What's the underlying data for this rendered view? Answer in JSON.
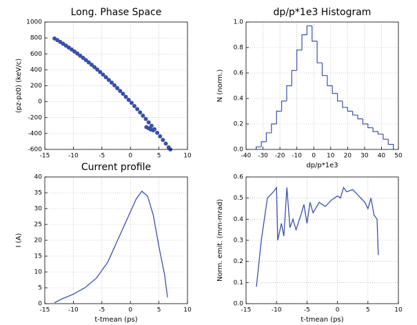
{
  "chart_data": [
    {
      "type": "scatter",
      "title": "Long. Phase Space",
      "ylabel": "(pz-pz0) (keV/c)",
      "color": "#3a4fa8",
      "grid": true,
      "xlim": [
        -15,
        10
      ],
      "xticks": [
        -15,
        -10,
        -5,
        0,
        5,
        10
      ],
      "ylim": [
        -600,
        1000
      ],
      "yticks": [
        -600,
        -400,
        -200,
        0,
        200,
        400,
        600,
        800,
        1000
      ],
      "x": [
        -13.3,
        -12.8,
        -12.3,
        -11.8,
        -11.3,
        -10.8,
        -10.3,
        -9.8,
        -9.3,
        -8.8,
        -8.3,
        -7.8,
        -7.3,
        -6.8,
        -6.3,
        -5.8,
        -5.3,
        -4.8,
        -4.3,
        -3.8,
        -3.3,
        -2.8,
        -2.3,
        -1.8,
        -1.3,
        -0.8,
        -0.3,
        0.2,
        0.7,
        1.2,
        1.7,
        2.2,
        2.7,
        3.2,
        3.7,
        4.2,
        4.7,
        5.2,
        5.7,
        6.2,
        6.7,
        7.0,
        2.8,
        3.2,
        3.6,
        4.0
      ],
      "values": [
        794,
        773,
        750,
        728,
        704,
        680,
        655,
        630,
        604,
        577,
        550,
        522,
        493,
        464,
        434,
        403,
        372,
        340,
        307,
        274,
        240,
        205,
        170,
        134,
        98,
        61,
        23,
        -15,
        -55,
        -94,
        -135,
        -176,
        -217,
        -260,
        -303,
        -346,
        -391,
        -436,
        -481,
        -527,
        -574,
        -600,
        -320,
        -335,
        -350,
        -360
      ]
    },
    {
      "type": "histogram",
      "title": "dp/p*1e3 Histogram",
      "xlabel": "dp/p*1e3",
      "ylabel": "N (norm.)",
      "color": "#3a4fa8",
      "grid": true,
      "xlim": [
        -40,
        50
      ],
      "xticks": [
        -40,
        -30,
        -20,
        -10,
        0,
        10,
        20,
        30,
        40,
        50
      ],
      "ylim": [
        0,
        1
      ],
      "yticks": [
        {
          "value": 0,
          "label": "0.0"
        },
        0.2,
        0.4,
        0.6,
        0.8,
        {
          "value": 1,
          "label": "1.0"
        }
      ],
      "bins": [
        -34,
        -31,
        -28,
        -25,
        -22,
        -19,
        -16,
        -13,
        -10,
        -7,
        -4,
        -1,
        2,
        5,
        8,
        11,
        14,
        17,
        20,
        23,
        26,
        29,
        32,
        35,
        38,
        41,
        44,
        47
      ],
      "values": [
        0.02,
        0.06,
        0.13,
        0.2,
        0.3,
        0.38,
        0.5,
        0.62,
        0.78,
        0.9,
        0.97,
        0.85,
        0.68,
        0.58,
        0.5,
        0.44,
        0.38,
        0.33,
        0.3,
        0.27,
        0.24,
        0.2,
        0.17,
        0.14,
        0.12,
        0.08,
        0.04
      ]
    },
    {
      "type": "line",
      "title": "Current profile",
      "xlabel": "t-tmean (ps)",
      "ylabel": "I (A)",
      "color": "#3a4fa8",
      "grid": true,
      "xlim": [
        -15,
        10
      ],
      "xticks": [
        -15,
        -10,
        -5,
        0,
        5,
        10
      ],
      "ylim": [
        0,
        40
      ],
      "yticks": [
        0,
        5,
        10,
        15,
        20,
        25,
        30,
        35,
        40
      ],
      "x": [
        -13.3,
        -12,
        -10,
        -8,
        -6,
        -5,
        -4,
        -3,
        -2,
        -1,
        0,
        1,
        2,
        3,
        4,
        5,
        6,
        6.5
      ],
      "values": [
        0.3,
        1.5,
        3,
        5,
        8,
        10.5,
        13,
        17,
        21,
        25,
        29,
        33,
        35.5,
        34,
        28,
        18,
        9,
        2
      ]
    },
    {
      "type": "line",
      "xlabel": "t-tmean (ps)",
      "ylabel": "Norm. emit. (mm-mrad)",
      "color": "#3a4fa8",
      "grid": true,
      "xlim": [
        -15,
        10
      ],
      "xticks": [
        -15,
        -10,
        -5,
        0,
        5,
        10
      ],
      "ylim": [
        0,
        0.6
      ],
      "yticks": [
        {
          "value": 0,
          "label": "0.0"
        },
        0.1,
        0.2,
        0.3,
        0.4,
        0.5,
        0.6
      ],
      "x": [
        -13.3,
        -12.5,
        -11.5,
        -10.5,
        -10,
        -9.8,
        -9.2,
        -8.8,
        -8.3,
        -7.8,
        -7.3,
        -6.8,
        -6,
        -5.5,
        -5,
        -4.5,
        -4,
        -3,
        -2,
        -1,
        0,
        0.5,
        1,
        1.5,
        2.5,
        3.5,
        4.5,
        5,
        5.5,
        6,
        6.5,
        6.7
      ],
      "values": [
        0.08,
        0.3,
        0.5,
        0.53,
        0.55,
        0.3,
        0.38,
        0.32,
        0.55,
        0.36,
        0.4,
        0.35,
        0.42,
        0.47,
        0.38,
        0.48,
        0.43,
        0.48,
        0.46,
        0.49,
        0.51,
        0.5,
        0.55,
        0.53,
        0.54,
        0.51,
        0.48,
        0.45,
        0.5,
        0.42,
        0.4,
        0.23
      ]
    }
  ]
}
